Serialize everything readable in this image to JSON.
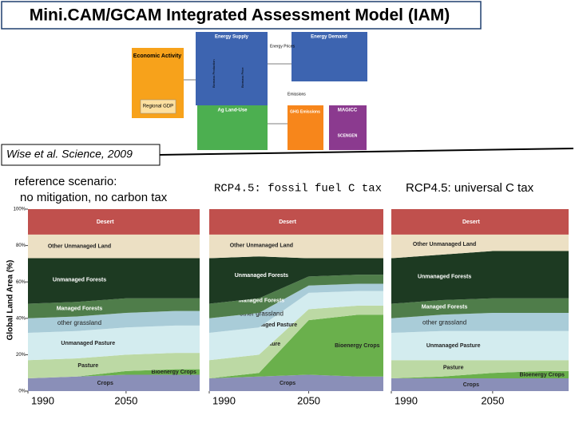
{
  "header": {
    "title": "Mini.CAM/GCAM Integrated Assessment Model (IAM)"
  },
  "diagram": {
    "boxes": [
      "Energy Supply",
      "Energy Demand",
      "Economic Activity",
      "Regional GDP",
      "Ag Land-Use",
      "GHG Emissions",
      "MAGICC",
      "SCENGEN"
    ],
    "arrows": [
      "Energy Prices",
      "Emissions",
      "Biomass Production",
      "Biomass Price"
    ]
  },
  "citation": "Wise et al. Science, 2009",
  "chart_data": [
    {
      "type": "area",
      "title": "reference scenario:",
      "subtitle": "no mitigation, no carbon tax",
      "y_label": "Global Land Area (%)",
      "x": [
        1990,
        2020,
        2050,
        2080,
        2095
      ],
      "xlim": [
        1990,
        2095
      ],
      "xticks": [
        1990,
        2050
      ],
      "ylim": [
        0,
        100
      ],
      "yticks": [
        {
          "value": 0,
          "label": "0%"
        },
        {
          "value": 20,
          "label": "20%"
        },
        {
          "value": 40,
          "label": "40%"
        },
        {
          "value": 60,
          "label": "60%"
        },
        {
          "value": 80,
          "label": "80%"
        },
        {
          "value": 100,
          "label": "100%"
        }
      ],
      "series": [
        {
          "name": "Crops",
          "color": "#8a8fb8",
          "values": [
            7,
            8,
            9,
            9,
            9
          ]
        },
        {
          "name": "Bioenergy Crops",
          "color": "#6ab04c",
          "values": [
            0,
            0,
            2,
            3,
            3
          ]
        },
        {
          "name": "Pasture",
          "color": "#bcd9a4",
          "values": [
            10,
            10,
            9,
            9,
            9
          ]
        },
        {
          "name": "Unmanaged Pasture",
          "color": "#d3ecef",
          "values": [
            15,
            15,
            15,
            15,
            15
          ]
        },
        {
          "name": "other grassland",
          "color": "#a9ccd8",
          "values": [
            8,
            8,
            8,
            8,
            8
          ]
        },
        {
          "name": "Managed Forests",
          "color": "#4f7d4a",
          "values": [
            8,
            8,
            8,
            7,
            7
          ]
        },
        {
          "name": "Unmanaged Forests",
          "color": "#1d3a22",
          "values": [
            25,
            24,
            22,
            22,
            22
          ]
        },
        {
          "name": "Other Unmanaged Land",
          "color": "#ece0c4",
          "values": [
            13,
            13,
            13,
            13,
            13
          ]
        },
        {
          "name": "Desert",
          "color": "#c0504d",
          "values": [
            14,
            14,
            14,
            14,
            14
          ]
        }
      ]
    },
    {
      "type": "area",
      "title": "RCP4.5: fossil fuel C tax",
      "x": [
        1990,
        2020,
        2050,
        2080,
        2095
      ],
      "xlim": [
        1990,
        2095
      ],
      "xticks": [
        1990,
        2050
      ],
      "ylim": [
        0,
        100
      ],
      "series": [
        {
          "name": "Crops",
          "color": "#8a8fb8",
          "values": [
            7,
            8,
            9,
            8,
            8
          ]
        },
        {
          "name": "Bioenergy Crops",
          "color": "#6ab04c",
          "values": [
            0,
            2,
            30,
            34,
            34
          ]
        },
        {
          "name": "Pasture",
          "color": "#bcd9a4",
          "values": [
            10,
            10,
            6,
            5,
            5
          ]
        },
        {
          "name": "Unmanaged Pasture",
          "color": "#d3ecef",
          "values": [
            15,
            15,
            9,
            8,
            8
          ]
        },
        {
          "name": "other grassland",
          "color": "#a9ccd8",
          "values": [
            8,
            8,
            4,
            4,
            4
          ]
        },
        {
          "name": "Managed Forests",
          "color": "#4f7d4a",
          "values": [
            8,
            8,
            5,
            5,
            5
          ]
        },
        {
          "name": "Unmanaged Forests",
          "color": "#1d3a22",
          "values": [
            25,
            23,
            10,
            9,
            9
          ]
        },
        {
          "name": "Other Unmanaged Land",
          "color": "#ece0c4",
          "values": [
            13,
            12,
            13,
            13,
            13
          ]
        },
        {
          "name": "Desert",
          "color": "#c0504d",
          "values": [
            14,
            14,
            14,
            14,
            14
          ]
        }
      ]
    },
    {
      "type": "area",
      "title": "RCP4.5: universal C tax",
      "x": [
        1990,
        2020,
        2050,
        2080,
        2095
      ],
      "xlim": [
        1990,
        2095
      ],
      "xticks": [
        1990,
        2050
      ],
      "ylim": [
        0,
        100
      ],
      "series": [
        {
          "name": "Crops",
          "color": "#8a8fb8",
          "values": [
            7,
            7,
            7,
            7,
            7
          ]
        },
        {
          "name": "Bioenergy Crops",
          "color": "#6ab04c",
          "values": [
            0,
            1,
            3,
            4,
            4
          ]
        },
        {
          "name": "Pasture",
          "color": "#bcd9a4",
          "values": [
            10,
            9,
            7,
            6,
            6
          ]
        },
        {
          "name": "Unmanaged Pasture",
          "color": "#d3ecef",
          "values": [
            15,
            16,
            16,
            16,
            16
          ]
        },
        {
          "name": "other grassland",
          "color": "#a9ccd8",
          "values": [
            8,
            9,
            10,
            10,
            10
          ]
        },
        {
          "name": "Managed Forests",
          "color": "#4f7d4a",
          "values": [
            8,
            8,
            8,
            8,
            8
          ]
        },
        {
          "name": "Unmanaged Forests",
          "color": "#1d3a22",
          "values": [
            25,
            25,
            26,
            26,
            26
          ]
        },
        {
          "name": "Other Unmanaged Land",
          "color": "#ece0c4",
          "values": [
            13,
            11,
            9,
            9,
            9
          ]
        },
        {
          "name": "Desert",
          "color": "#c0504d",
          "values": [
            14,
            14,
            14,
            14,
            14
          ]
        }
      ]
    }
  ]
}
